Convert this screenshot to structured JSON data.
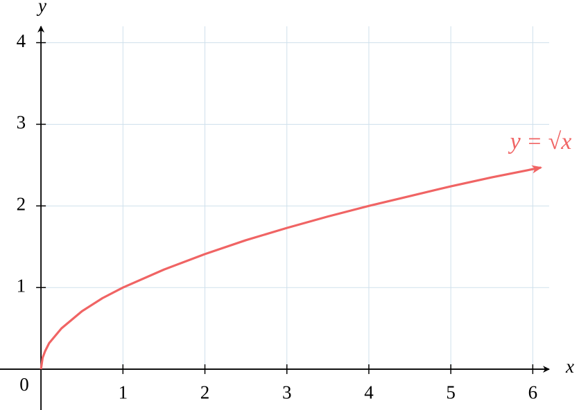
{
  "chart_data": {
    "type": "line",
    "x": [
      0,
      0.02,
      0.05,
      0.1,
      0.25,
      0.5,
      0.75,
      1,
      1.5,
      2,
      2.5,
      3,
      3.5,
      4,
      4.5,
      5,
      5.5,
      6.1
    ],
    "values": [
      0,
      0.14,
      0.22,
      0.32,
      0.5,
      0.71,
      0.87,
      1,
      1.22,
      1.41,
      1.58,
      1.73,
      1.87,
      2,
      2.12,
      2.24,
      2.35,
      2.47
    ],
    "color": "#f06464",
    "annotation": "y = √x",
    "x_label": "x",
    "y_label": "y",
    "origin_label": "0",
    "xlim": [
      -0.5,
      6.2
    ],
    "ylim": [
      -0.5,
      4.2
    ],
    "xticks": [
      1,
      2,
      3,
      4,
      5,
      6
    ],
    "yticks": [
      1,
      2,
      3,
      4
    ],
    "grid": true,
    "grid_color": "#cfe0ec",
    "axis_color": "#000000"
  }
}
